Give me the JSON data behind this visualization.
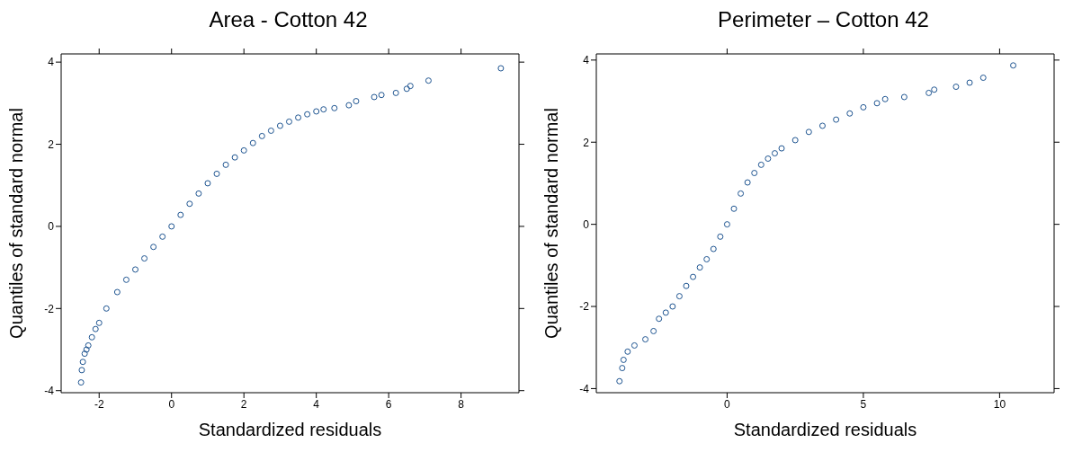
{
  "chart_data": [
    {
      "type": "scatter",
      "title": "Area  - Cotton 42",
      "xlabel": "Standardized residuals",
      "ylabel": "Quantiles of standard normal",
      "xlim": [
        -3.05,
        9.6
      ],
      "ylim": [
        -4.05,
        4.2
      ],
      "xticks": [
        -2,
        0,
        2,
        4,
        6,
        8
      ],
      "yticks": [
        -4,
        -2,
        0,
        2,
        4
      ],
      "marker": "circle",
      "grid": false,
      "legend": false,
      "series": [
        {
          "color": "#1f5591",
          "x": [
            -2.5,
            -2.48,
            -2.45,
            -2.4,
            -2.35,
            -2.3,
            -2.2,
            -2.1,
            -2.0,
            -1.8,
            -1.5,
            -1.25,
            -1.0,
            -0.75,
            -0.5,
            -0.25,
            0,
            0.25,
            0.5,
            0.75,
            1,
            1.25,
            1.5,
            1.75,
            2,
            2.25,
            2.5,
            2.75,
            3,
            3.25,
            3.5,
            3.75,
            4,
            4.2,
            4.5,
            4.9,
            5.1,
            5.6,
            5.8,
            6.2,
            6.5,
            6.6,
            7.1,
            9.1
          ],
          "values": [
            -3.8,
            -3.5,
            -3.3,
            -3.1,
            -3.0,
            -2.9,
            -2.7,
            -2.5,
            -2.35,
            -2.0,
            -1.6,
            -1.3,
            -1.05,
            -0.78,
            -0.5,
            -0.25,
            0,
            0.28,
            0.55,
            0.8,
            1.05,
            1.28,
            1.5,
            1.68,
            1.85,
            2.03,
            2.2,
            2.33,
            2.45,
            2.55,
            2.65,
            2.73,
            2.8,
            2.85,
            2.88,
            2.95,
            3.05,
            3.15,
            3.2,
            3.25,
            3.35,
            3.42,
            3.55,
            3.85
          ]
        }
      ]
    },
    {
      "type": "scatter",
      "title": "Perimeter – Cotton 42",
      "xlabel": "Standardized residuals",
      "ylabel": "Quantiles of standard normal",
      "xlim": [
        -4.8,
        12
      ],
      "ylim": [
        -4.1,
        4.15
      ],
      "xticks": [
        0,
        5,
        10
      ],
      "yticks": [
        -4,
        -2,
        0,
        2,
        4
      ],
      "marker": "circle",
      "grid": false,
      "legend": false,
      "series": [
        {
          "color": "#1f5591",
          "x": [
            -3.95,
            -3.85,
            -3.8,
            -3.65,
            -3.4,
            -3.0,
            -2.7,
            -2.5,
            -2.25,
            -2.0,
            -1.75,
            -1.5,
            -1.25,
            -1.0,
            -0.75,
            -0.5,
            -0.25,
            0,
            0.25,
            0.5,
            0.75,
            1,
            1.25,
            1.5,
            1.75,
            2,
            2.5,
            3,
            3.5,
            4,
            4.5,
            5,
            5.5,
            5.8,
            6.5,
            7.4,
            7.6,
            8.4,
            8.9,
            9.4,
            10.5
          ],
          "values": [
            -3.82,
            -3.5,
            -3.3,
            -3.1,
            -2.95,
            -2.8,
            -2.6,
            -2.3,
            -2.15,
            -2.0,
            -1.75,
            -1.5,
            -1.28,
            -1.05,
            -0.85,
            -0.6,
            -0.3,
            0,
            0.38,
            0.75,
            1.02,
            1.25,
            1.45,
            1.6,
            1.73,
            1.85,
            2.05,
            2.25,
            2.4,
            2.55,
            2.7,
            2.85,
            2.95,
            3.05,
            3.1,
            3.2,
            3.28,
            3.35,
            3.45,
            3.57,
            3.87
          ]
        }
      ]
    }
  ]
}
